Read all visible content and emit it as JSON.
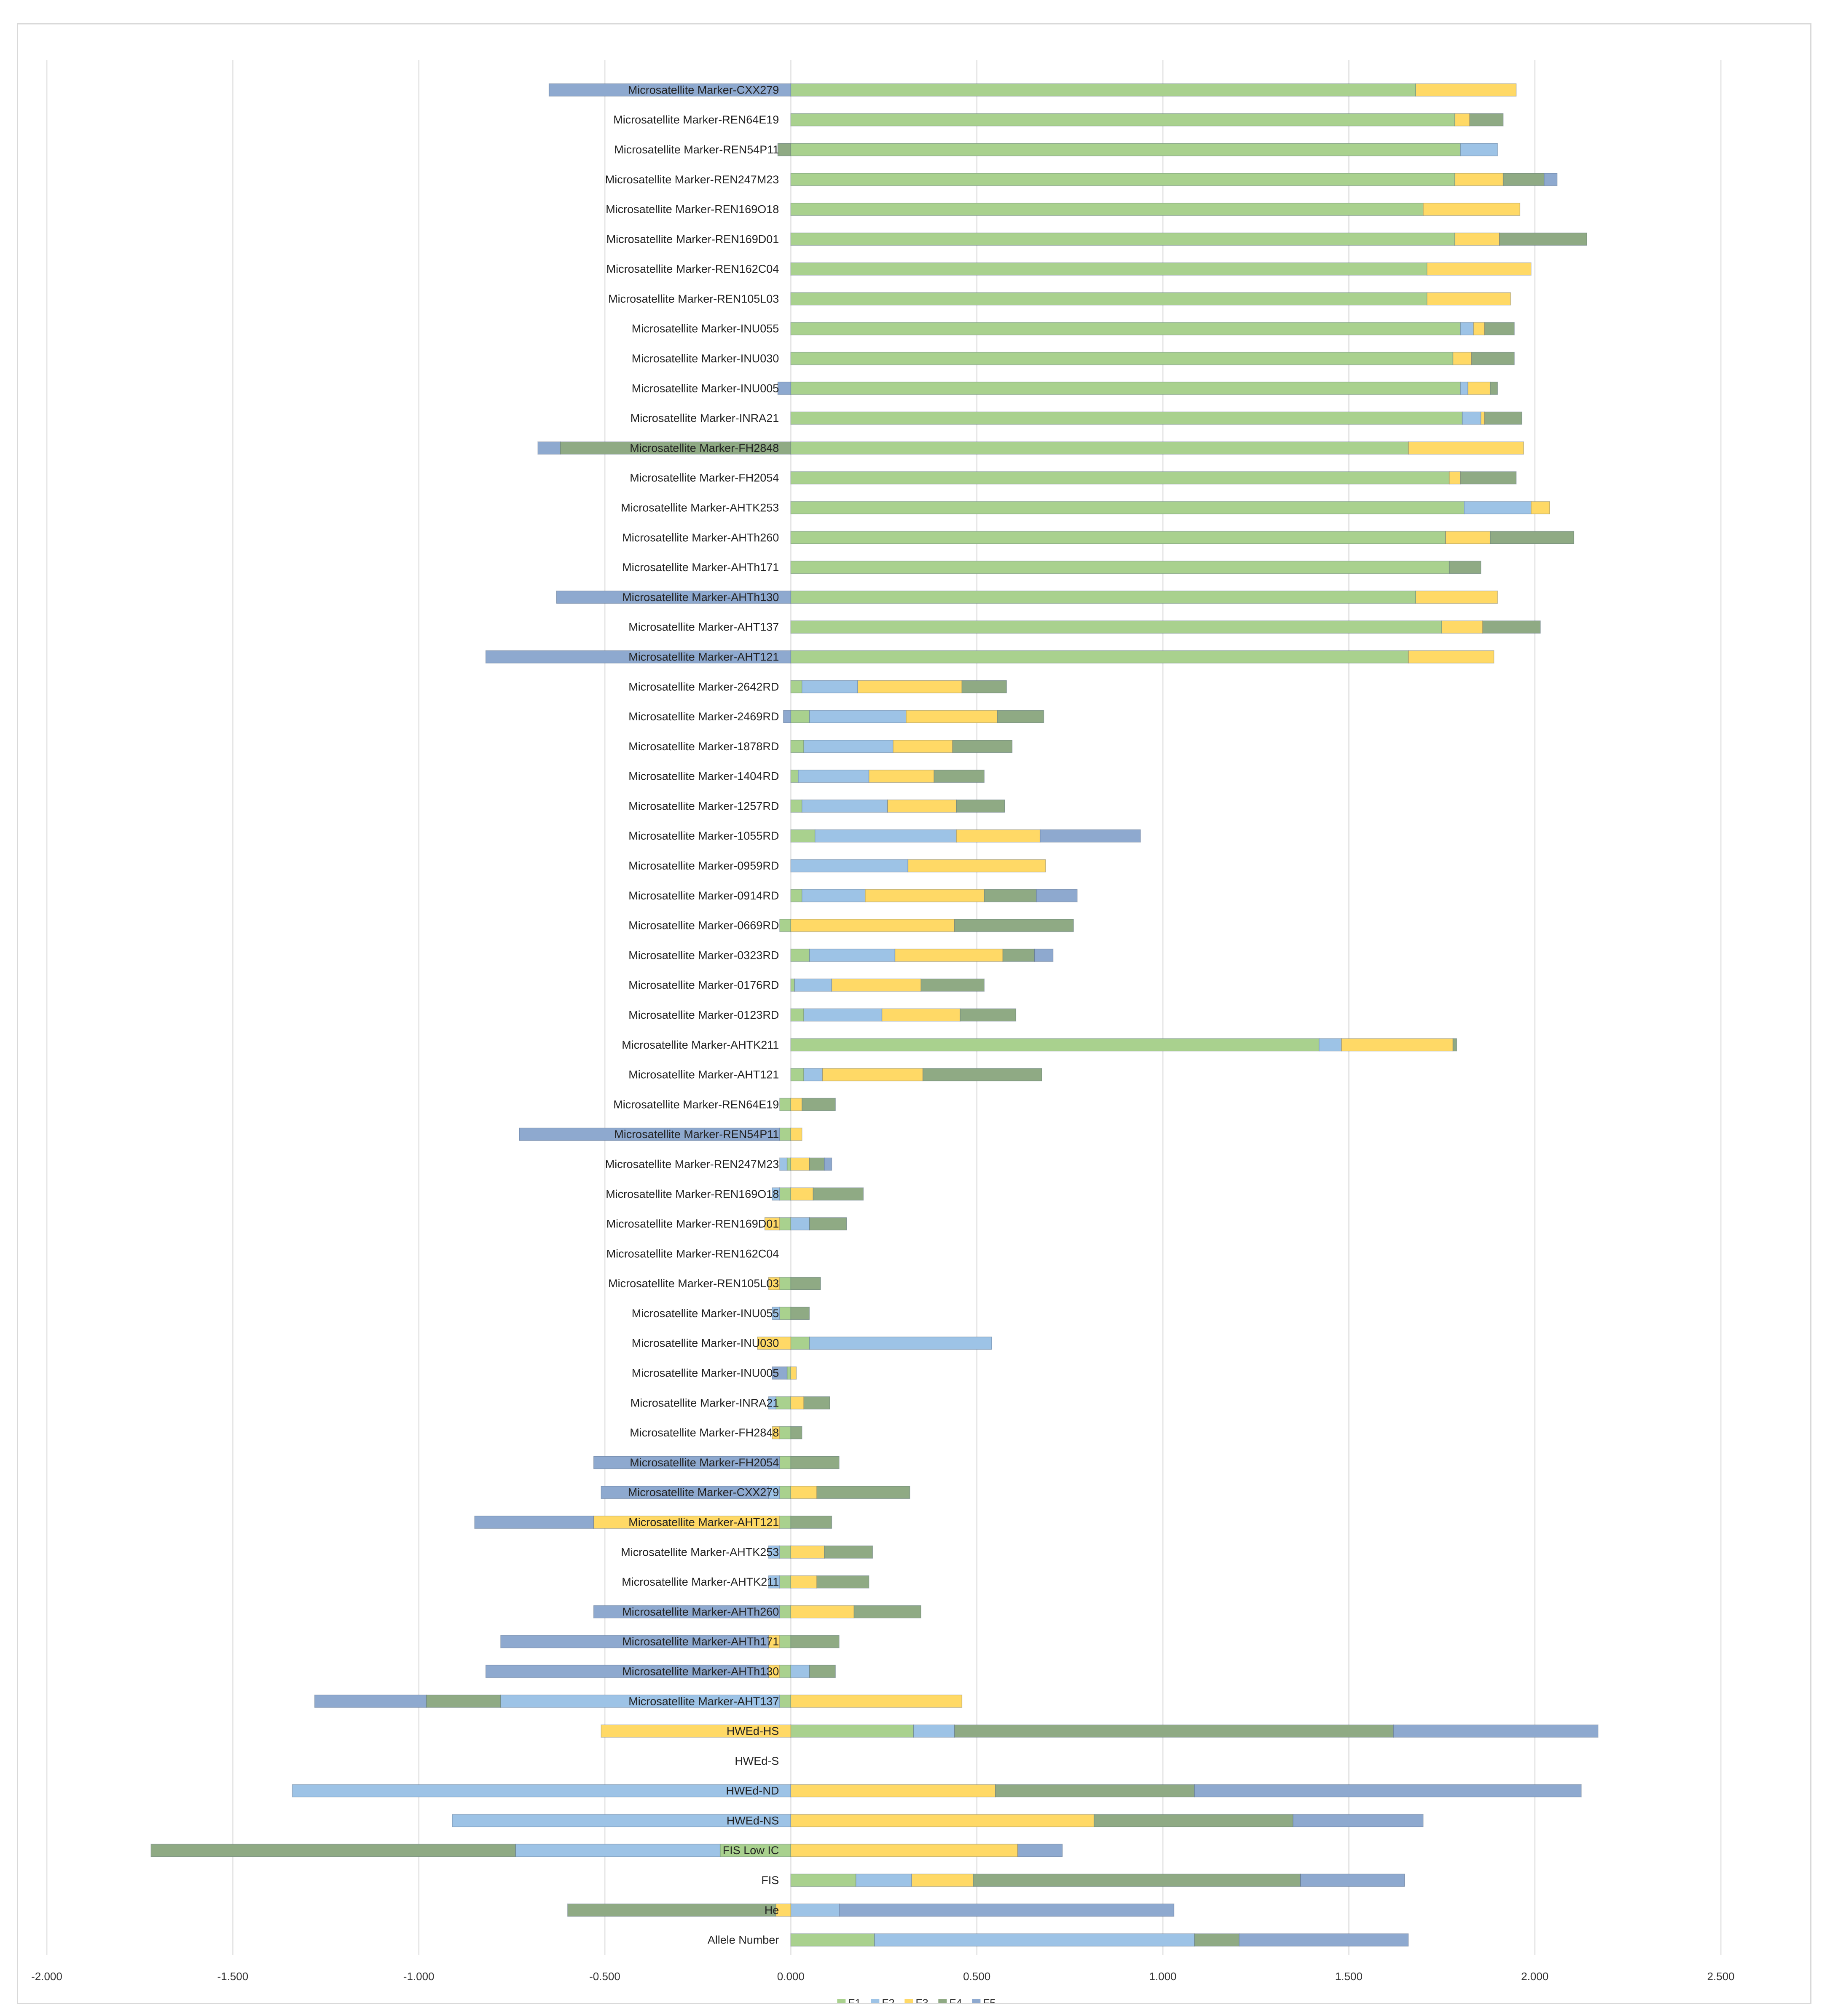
{
  "chart_data": {
    "type": "bar",
    "orientation": "horizontal",
    "stacking": "diverging",
    "title": "",
    "xlabel": "",
    "ylabel": "",
    "xlim": [
      -2.0,
      2.5
    ],
    "xticks": [
      -2.0,
      -1.5,
      -1.0,
      -0.5,
      0.0,
      0.5,
      1.0,
      1.5,
      2.0,
      2.5
    ],
    "xtick_labels": [
      "-2.000",
      "-1.500",
      "-1.000",
      "-0.500",
      "0.000",
      "0.500",
      "1.000",
      "1.500",
      "2.000",
      "2.500"
    ],
    "grid": "vertical",
    "legend_position": "bottom",
    "categories": [
      "Microsatellite Marker-CXX279",
      "Microsatellite Marker-REN64E19",
      "Microsatellite Marker-REN54P11",
      "Microsatellite Marker-REN247M23",
      "Microsatellite Marker-REN169O18",
      "Microsatellite Marker-REN169D01",
      "Microsatellite Marker-REN162C04",
      "Microsatellite Marker-REN105L03",
      "Microsatellite Marker-INU055",
      "Microsatellite Marker-INU030",
      "Microsatellite Marker-INU005",
      "Microsatellite Marker-INRA21",
      "Microsatellite Marker-FH2848",
      "Microsatellite Marker-FH2054",
      "Microsatellite Marker-AHTK253",
      "Microsatellite Marker-AHTh260",
      "Microsatellite Marker-AHTh171",
      "Microsatellite Marker-AHTh130",
      "Microsatellite Marker-AHT137",
      "Microsatellite Marker-AHT121",
      "Microsatellite Marker-2642RD",
      "Microsatellite Marker-2469RD",
      "Microsatellite Marker-1878RD",
      "Microsatellite Marker-1404RD",
      "Microsatellite Marker-1257RD",
      "Microsatellite Marker-1055RD",
      "Microsatellite Marker-0959RD",
      "Microsatellite Marker-0914RD",
      "Microsatellite Marker-0669RD",
      "Microsatellite Marker-0323RD",
      "Microsatellite Marker-0176RD",
      "Microsatellite Marker-0123RD",
      "Microsatellite Marker-AHTK211",
      "Microsatellite Marker-AHT121",
      "Microsatellite Marker-REN64E19",
      "Microsatellite Marker-REN54P11",
      "Microsatellite Marker-REN247M23",
      "Microsatellite Marker-REN169O18",
      "Microsatellite Marker-REN169D01",
      "Microsatellite Marker-REN162C04",
      "Microsatellite Marker-REN105L03",
      "Microsatellite Marker-INU055",
      "Microsatellite Marker-INU030",
      "Microsatellite Marker-INU005",
      "Microsatellite Marker-INRA21",
      "Microsatellite Marker-FH2848",
      "Microsatellite Marker-FH2054",
      "Microsatellite Marker-CXX279",
      "Microsatellite Marker-AHT121",
      "Microsatellite Marker-AHTK253",
      "Microsatellite Marker-AHTK211",
      "Microsatellite Marker-AHTh260",
      "Microsatellite Marker-AHTh171",
      "Microsatellite Marker-AHTh130",
      "Microsatellite Marker-AHT137",
      "HWEd-HS",
      "HWEd-S",
      "HWEd-ND",
      "HWEd-NS",
      "FIS Low IC",
      "FIS",
      "He",
      "Allele Number"
    ],
    "series": [
      {
        "name": "F1",
        "color": "#a9d18e",
        "values": [
          1.68,
          1.785,
          1.8,
          1.785,
          1.7,
          1.785,
          1.71,
          1.71,
          1.8,
          1.78,
          1.8,
          1.805,
          1.66,
          1.77,
          1.81,
          1.76,
          1.77,
          1.68,
          1.75,
          1.66,
          0.03,
          0.05,
          0.035,
          0.02,
          0.03,
          0.065,
          0.0,
          0.03,
          -0.03,
          0.05,
          0.01,
          0.035,
          1.42,
          0.035,
          -0.03,
          -0.03,
          -0.01,
          -0.03,
          -0.03,
          0.0,
          -0.03,
          -0.03,
          0.05,
          -0.01,
          -0.04,
          -0.03,
          -0.03,
          -0.03,
          -0.03,
          -0.03,
          -0.03,
          -0.03,
          -0.03,
          -0.03,
          -0.03,
          0.33,
          0.0,
          0.0,
          0.0,
          -0.19,
          0.175,
          0.0,
          0.225
        ]
      },
      {
        "name": "F2",
        "color": "#9dc3e6",
        "values": [
          0.0,
          0.0,
          0.1,
          0.0,
          0.0,
          0.0,
          0.0,
          0.0,
          0.035,
          0.0,
          0.02,
          0.05,
          0.0,
          0.0,
          0.18,
          0.0,
          0.0,
          0.0,
          0.0,
          0.0,
          0.15,
          0.26,
          0.24,
          0.19,
          0.23,
          0.38,
          0.315,
          0.17,
          0.0,
          0.23,
          0.1,
          0.21,
          0.06,
          0.05,
          0.0,
          0.0,
          -0.02,
          -0.02,
          0.05,
          0.0,
          0.0,
          -0.02,
          0.49,
          0.0,
          -0.02,
          0.0,
          0.0,
          -0.03,
          0.0,
          -0.03,
          -0.03,
          0.0,
          0.0,
          0.05,
          -0.75,
          0.11,
          0.0,
          -1.34,
          -0.91,
          -0.55,
          0.15,
          0.13,
          0.86
        ]
      },
      {
        "name": "F3",
        "color": "#ffd966",
        "values": [
          0.27,
          0.04,
          0.0,
          0.13,
          0.26,
          0.12,
          0.28,
          0.225,
          0.03,
          0.05,
          0.06,
          0.01,
          0.31,
          0.03,
          0.05,
          0.12,
          0.0,
          0.22,
          0.11,
          0.23,
          0.28,
          0.245,
          0.16,
          0.175,
          0.185,
          0.225,
          0.37,
          0.32,
          0.44,
          0.29,
          0.24,
          0.21,
          0.3,
          0.27,
          0.03,
          0.03,
          0.05,
          0.06,
          -0.04,
          0.0,
          -0.03,
          0.0,
          -0.09,
          0.015,
          0.035,
          -0.02,
          0.0,
          0.07,
          -0.5,
          0.09,
          0.07,
          0.17,
          -0.03,
          -0.03,
          0.46,
          -0.51,
          0.0,
          0.55,
          0.815,
          0.61,
          0.165,
          -0.04,
          0.0
        ]
      },
      {
        "name": "F4",
        "color": "#8faa84",
        "values": [
          0.0,
          0.09,
          -0.035,
          0.11,
          0.0,
          0.235,
          0.0,
          0.0,
          0.08,
          0.115,
          0.02,
          0.1,
          -0.62,
          0.15,
          0.0,
          0.225,
          0.085,
          0.0,
          0.155,
          0.0,
          0.12,
          0.125,
          0.16,
          0.135,
          0.13,
          0.0,
          0.0,
          0.14,
          0.32,
          0.085,
          0.17,
          0.15,
          0.01,
          0.32,
          0.09,
          0.0,
          0.04,
          0.135,
          0.1,
          0.0,
          0.08,
          0.05,
          0.0,
          0.0,
          0.07,
          0.03,
          0.13,
          0.25,
          0.11,
          0.13,
          0.14,
          0.18,
          0.13,
          0.07,
          -0.2,
          1.18,
          0.0,
          0.535,
          0.535,
          -0.98,
          0.88,
          -0.56,
          0.12
        ]
      },
      {
        "name": "F5",
        "color": "#8ea9cf",
        "values": [
          -0.65,
          0.0,
          0.0,
          0.035,
          0.0,
          0.0,
          0.0,
          0.0,
          0.0,
          0.0,
          -0.035,
          0.0,
          -0.06,
          0.0,
          0.0,
          0.0,
          0.0,
          -0.63,
          0.0,
          -0.82,
          0.0,
          -0.02,
          0.0,
          0.0,
          0.0,
          0.27,
          0.0,
          0.11,
          0.0,
          0.05,
          0.0,
          0.0,
          0.0,
          0.0,
          0.0,
          -0.7,
          0.02,
          0.0,
          0.0,
          0.0,
          0.0,
          0.0,
          0.0,
          -0.04,
          0.0,
          0.0,
          -0.5,
          -0.45,
          -0.32,
          0.0,
          0.0,
          -0.5,
          -0.72,
          -0.76,
          -0.3,
          0.55,
          0.0,
          1.04,
          0.35,
          0.12,
          0.28,
          0.9,
          0.455
        ]
      }
    ]
  }
}
